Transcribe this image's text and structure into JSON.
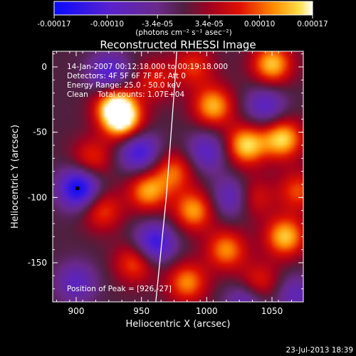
{
  "colorbar": {
    "tick_labels": [
      "-0.00017",
      "-0.00010",
      "-3.4e-05",
      "3.4e-05",
      "0.00010",
      "0.00017"
    ],
    "unit_label": "(photons cm⁻² s⁻¹ asec⁻²)",
    "range": [
      -0.00017,
      0.00017
    ]
  },
  "chart_data": {
    "type": "heatmap",
    "title": "Reconstructed RHESSI Image",
    "xlabel": "Heliocentric X (arcsec)",
    "ylabel": "Heliocentric Y (arcsec)",
    "xlim": [
      882,
      1074
    ],
    "ylim": [
      -180,
      12
    ],
    "x_ticks": [
      900,
      950,
      1000,
      1050
    ],
    "y_ticks": [
      0,
      -50,
      -100,
      -150
    ],
    "info_lines": [
      "14-Jan-2007 00:12:18.000 to 00:19:18.000",
      "Detectors: 4F 5F 6F 7F 8F, Att 0",
      "Energy Range: 25.0 - 50.0 keV",
      "Clean    Total counts: 1.07E+04"
    ],
    "peak_label": "Position of Peak = [926,-27]",
    "peak": [
      926,
      -27
    ],
    "min_marker": [
      901,
      -93
    ],
    "limb_points": [
      [
        961,
        -180
      ],
      [
        965,
        -140
      ],
      [
        969,
        -100
      ],
      [
        972,
        -60
      ],
      [
        975,
        -20
      ],
      [
        977,
        12
      ]
    ],
    "blobs": [
      {
        "x": 930,
        "y": -30,
        "v": 1.0
      },
      {
        "x": 936,
        "y": -42,
        "v": 0.85
      },
      {
        "x": 1030,
        "y": -60,
        "v": 0.9
      },
      {
        "x": 1058,
        "y": -55,
        "v": 0.9
      },
      {
        "x": 1050,
        "y": 2,
        "v": 0.85
      },
      {
        "x": 1005,
        "y": -30,
        "v": 0.8
      },
      {
        "x": 990,
        "y": -110,
        "v": 0.75
      },
      {
        "x": 1060,
        "y": -130,
        "v": 0.85
      },
      {
        "x": 1015,
        "y": -140,
        "v": 0.7
      },
      {
        "x": 955,
        "y": -95,
        "v": 0.75
      },
      {
        "x": 975,
        "y": -80,
        "v": 0.6
      },
      {
        "x": 945,
        "y": -150,
        "v": 0.6
      },
      {
        "x": 985,
        "y": -165,
        "v": 0.7
      },
      {
        "x": 920,
        "y": -110,
        "v": 0.55
      },
      {
        "x": 912,
        "y": -70,
        "v": 0.5
      },
      {
        "x": 990,
        "y": 0,
        "v": 0.5
      },
      {
        "x": 960,
        "y": -10,
        "v": 0.45
      },
      {
        "x": 1070,
        "y": -95,
        "v": 0.55
      },
      {
        "x": 1040,
        "y": -165,
        "v": 0.5
      },
      {
        "x": 1035,
        "y": -100,
        "v": 0.5
      },
      {
        "x": 902,
        "y": -93,
        "v": -1.0
      },
      {
        "x": 948,
        "y": -65,
        "v": -0.75
      },
      {
        "x": 960,
        "y": -135,
        "v": -0.8
      },
      {
        "x": 925,
        "y": -5,
        "v": -0.65
      },
      {
        "x": 1000,
        "y": -65,
        "v": -0.55
      },
      {
        "x": 1020,
        "y": -100,
        "v": -0.6
      },
      {
        "x": 1045,
        "y": -30,
        "v": -0.55
      },
      {
        "x": 1030,
        "y": -180,
        "v": -0.5
      },
      {
        "x": 900,
        "y": -165,
        "v": -0.5
      },
      {
        "x": 1068,
        "y": -175,
        "v": -0.45
      }
    ]
  },
  "footer": {
    "date": "23-Jul-2013 18:39"
  }
}
